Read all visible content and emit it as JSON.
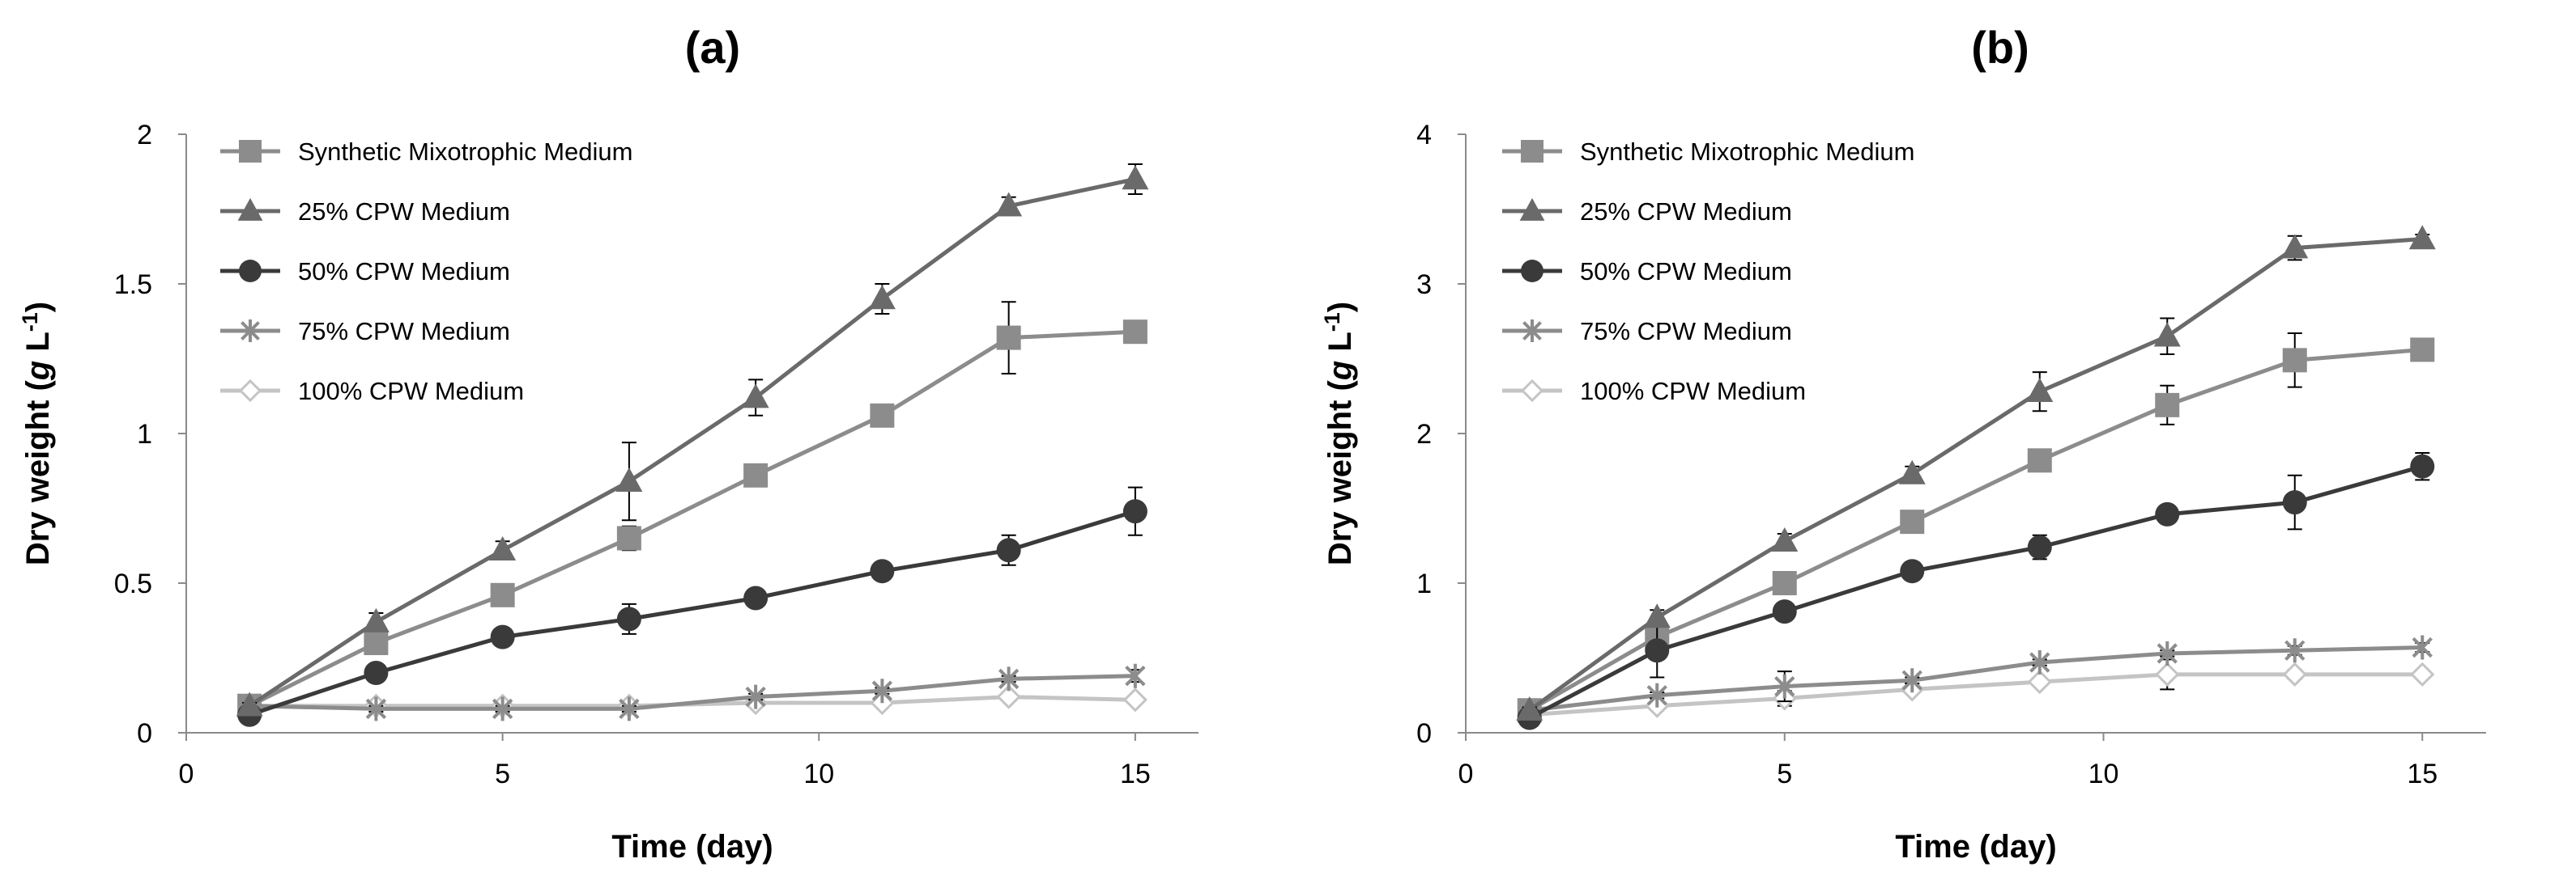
{
  "chart_data": [
    {
      "type": "line",
      "panel_label": "(a)",
      "xlabel": "Time (day)",
      "ylabel_main": "Dry weight (",
      "ylabel_italic": "g",
      "ylabel_unit": " L",
      "ylabel_sup": "-1",
      "ylabel_close": ")",
      "xlim": [
        0,
        16
      ],
      "ylim": [
        0,
        2
      ],
      "xticks": [
        0,
        5,
        10,
        15
      ],
      "yticks": [
        0,
        0.5,
        1,
        1.5,
        2
      ],
      "ytick_labels": [
        "0",
        "0.5",
        "1",
        "1.5",
        "2"
      ],
      "grid": false,
      "legend_position": "top-left",
      "x": [
        1,
        3,
        5,
        7,
        9,
        11,
        13,
        15
      ],
      "series": [
        {
          "name": "Synthetic Mixotrophic Medium",
          "marker": "square",
          "color": "#8c8c8c",
          "values": [
            0.09,
            0.3,
            0.46,
            0.65,
            0.86,
            1.06,
            1.32,
            1.34
          ],
          "errors": [
            0.01,
            0.03,
            0.03,
            0.04,
            0.03,
            0.03,
            0.12,
            0.02
          ]
        },
        {
          "name": "25% CPW Medium",
          "marker": "triangle",
          "color": "#6a6a6a",
          "values": [
            0.09,
            0.37,
            0.61,
            0.84,
            1.12,
            1.45,
            1.76,
            1.85
          ],
          "errors": [
            0.01,
            0.03,
            0.03,
            0.13,
            0.06,
            0.05,
            0.03,
            0.05
          ]
        },
        {
          "name": "50% CPW Medium",
          "marker": "circle",
          "color": "#3a3a3a",
          "values": [
            0.06,
            0.2,
            0.32,
            0.38,
            0.45,
            0.54,
            0.61,
            0.74
          ],
          "errors": [
            0.01,
            0.02,
            0.02,
            0.05,
            0.02,
            0.02,
            0.05,
            0.08
          ]
        },
        {
          "name": "75% CPW Medium",
          "marker": "star",
          "color": "#8c8c8c",
          "values": [
            0.09,
            0.08,
            0.08,
            0.08,
            0.12,
            0.14,
            0.18,
            0.19
          ],
          "errors": [
            0.01,
            0.01,
            0.01,
            0.01,
            0.01,
            0.01,
            0.01,
            0.02
          ]
        },
        {
          "name": "100% CPW Medium",
          "marker": "diamond",
          "color": "#c4c4c4",
          "values": [
            0.09,
            0.09,
            0.09,
            0.09,
            0.1,
            0.1,
            0.12,
            0.11
          ],
          "errors": [
            0.01,
            0.01,
            0.01,
            0.01,
            0.01,
            0.01,
            0.01,
            0.01
          ]
        }
      ]
    },
    {
      "type": "line",
      "panel_label": "(b)",
      "xlabel": "Time (day)",
      "ylabel_main": "Dry weight (",
      "ylabel_italic": "g",
      "ylabel_unit": " L",
      "ylabel_sup": "-1",
      "ylabel_close": ")",
      "xlim": [
        0,
        16
      ],
      "ylim": [
        0,
        4
      ],
      "xticks": [
        0,
        5,
        10,
        15
      ],
      "yticks": [
        0,
        1,
        2,
        3,
        4
      ],
      "ytick_labels": [
        "0",
        "1",
        "2",
        "3",
        "4"
      ],
      "grid": false,
      "legend_position": "top-left",
      "x": [
        1,
        3,
        5,
        7,
        9,
        11,
        13,
        15
      ],
      "series": [
        {
          "name": "Synthetic Mixotrophic Medium",
          "marker": "square",
          "color": "#8c8c8c",
          "values": [
            0.15,
            0.64,
            1.0,
            1.41,
            1.82,
            2.19,
            2.49,
            2.56
          ],
          "errors": [
            0.02,
            0.06,
            0.05,
            0.05,
            0.05,
            0.13,
            0.18,
            0.05
          ]
        },
        {
          "name": "25% CPW Medium",
          "marker": "triangle",
          "color": "#6a6a6a",
          "values": [
            0.15,
            0.77,
            1.28,
            1.73,
            2.28,
            2.65,
            3.24,
            3.3
          ],
          "errors": [
            0.02,
            0.05,
            0.05,
            0.05,
            0.13,
            0.12,
            0.08,
            0.03
          ]
        },
        {
          "name": "50% CPW Medium",
          "marker": "circle",
          "color": "#3a3a3a",
          "values": [
            0.1,
            0.55,
            0.81,
            1.08,
            1.24,
            1.46,
            1.54,
            1.78
          ],
          "errors": [
            0.02,
            0.18,
            0.05,
            0.06,
            0.08,
            0.05,
            0.18,
            0.09
          ]
        },
        {
          "name": "75% CPW Medium",
          "marker": "star",
          "color": "#8c8c8c",
          "values": [
            0.15,
            0.25,
            0.31,
            0.35,
            0.47,
            0.53,
            0.55,
            0.57
          ],
          "errors": [
            0.02,
            0.02,
            0.1,
            0.02,
            0.02,
            0.02,
            0.03,
            0.03
          ]
        },
        {
          "name": "100% CPW Medium",
          "marker": "diamond",
          "color": "#c4c4c4",
          "values": [
            0.12,
            0.18,
            0.23,
            0.29,
            0.34,
            0.39,
            0.39,
            0.39
          ],
          "errors": [
            0.02,
            0.02,
            0.05,
            0.02,
            0.02,
            0.1,
            0.03,
            0.02
          ]
        }
      ]
    }
  ]
}
